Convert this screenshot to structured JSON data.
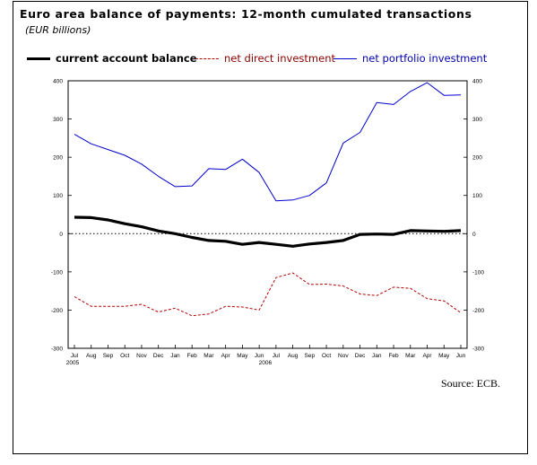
{
  "title": "Euro area balance of payments: 12-month cumulated transactions",
  "subtitle": "(EUR billions)",
  "source": "Source: ECB.",
  "chart_data": {
    "type": "line",
    "x": [
      "Jul",
      "Aug",
      "Sep",
      "Oct",
      "Nov",
      "Dec",
      "Jan",
      "Feb",
      "Mar",
      "Apr",
      "May",
      "Jun",
      "Jul",
      "Aug",
      "Sep",
      "Oct",
      "Nov",
      "Dec",
      "Jan",
      "Feb",
      "Mar",
      "Apr",
      "May",
      "Jun"
    ],
    "year_labels": [
      "2005",
      "2006"
    ],
    "ylim": [
      -300,
      400
    ],
    "yticks": [
      400,
      300,
      200,
      100,
      0,
      -100,
      -200,
      -300
    ],
    "series": [
      {
        "name": "current account balance",
        "color": "#000000",
        "style": "solid-thick",
        "values": [
          43,
          42,
          36,
          26,
          18,
          7,
          0,
          -10,
          -18,
          -20,
          -28,
          -23,
          -28,
          -33,
          -27,
          -23,
          -18,
          -2,
          -1,
          -2,
          8,
          7,
          6,
          8
        ]
      },
      {
        "name": "net direct investment",
        "color": "#b00000",
        "style": "dashed",
        "values": [
          -165,
          -190,
          -190,
          -190,
          -185,
          -205,
          -195,
          -215,
          -210,
          -190,
          -192,
          -200,
          -115,
          -103,
          -133,
          -132,
          -137,
          -158,
          -162,
          -140,
          -143,
          -170,
          -176,
          -207
        ]
      },
      {
        "name": "net portfolio investment",
        "color": "#0000cc",
        "style": "solid",
        "values": [
          260,
          235,
          220,
          205,
          182,
          150,
          123,
          125,
          170,
          168,
          195,
          160,
          86,
          88,
          100,
          133,
          237,
          265,
          343,
          338,
          372,
          395,
          362,
          363
        ]
      }
    ],
    "zero_line": true,
    "grid": false,
    "legend_position": "top"
  }
}
